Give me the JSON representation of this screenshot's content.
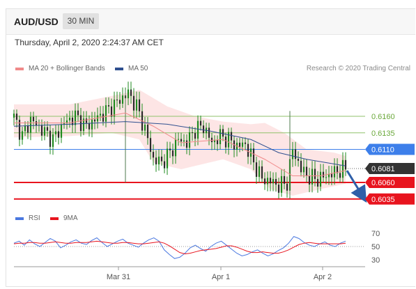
{
  "header": {
    "pair": "AUD/USD",
    "timeframe": "30 MIN",
    "datetime": "Thursday, April 2, 2020 2:24:37 AM CET"
  },
  "legend": {
    "ma20_label": "MA 20 + Bollinger Bands",
    "ma50_label": "MA 50",
    "copyright": "Research © 2020 Trading Central",
    "rsi_label": "RSI",
    "ma9_label": "9MA"
  },
  "colors": {
    "ma20": "#f08a8a",
    "ma50": "#2f4f8f",
    "bands_fill": "#fde0e0",
    "pivot_green": "#8fc26a",
    "pivot_blue": "#3d7fea",
    "support_red": "#e8141e",
    "current_price": "#333333",
    "rsi": "#4a78e0",
    "rsi_ma": "#e8141e",
    "candle": "#1e8a1e"
  },
  "chart_data": [
    {
      "type": "candlestick",
      "title": "AUD/USD 30 MIN",
      "ylim": [
        0.602,
        0.622
      ],
      "x_ticks": [
        "Mar 31",
        "Apr 1",
        "Apr 2"
      ],
      "levels": [
        {
          "value": 0.616,
          "label": "0.6160",
          "kind": "resistance",
          "color": "#8fc26a"
        },
        {
          "value": 0.6135,
          "label": "0.6135",
          "kind": "resistance",
          "color": "#8fc26a"
        },
        {
          "value": 0.611,
          "label": "0.6110",
          "kind": "pivot",
          "color": "#3d7fea"
        },
        {
          "value": 0.6081,
          "label": "0.6081",
          "kind": "current",
          "color": "#333333"
        },
        {
          "value": 0.606,
          "label": "0.6060",
          "kind": "support",
          "color": "#e8141e"
        },
        {
          "value": 0.6035,
          "label": "0.6035",
          "kind": "support",
          "color": "#e8141e"
        }
      ],
      "close_path": [
        [
          0,
          0.6158
        ],
        [
          3,
          0.613
        ],
        [
          6,
          0.6155
        ],
        [
          10,
          0.614
        ],
        [
          14,
          0.6125
        ],
        [
          18,
          0.615
        ],
        [
          22,
          0.616
        ],
        [
          26,
          0.6145
        ],
        [
          30,
          0.6158
        ],
        [
          34,
          0.617
        ],
        [
          38,
          0.6185
        ],
        [
          41,
          0.6195
        ],
        [
          44,
          0.6175
        ],
        [
          47,
          0.614
        ],
        [
          50,
          0.6095
        ],
        [
          53,
          0.609
        ],
        [
          56,
          0.6105
        ],
        [
          59,
          0.6125
        ],
        [
          62,
          0.612
        ],
        [
          65,
          0.614
        ],
        [
          68,
          0.6145
        ],
        [
          71,
          0.612
        ],
        [
          74,
          0.613
        ],
        [
          77,
          0.6125
        ],
        [
          80,
          0.6115
        ],
        [
          83,
          0.6118
        ],
        [
          86,
          0.609
        ],
        [
          89,
          0.6065
        ],
        [
          92,
          0.6062
        ],
        [
          95,
          0.6055
        ],
        [
          98,
          0.606
        ],
        [
          100,
          0.611
        ],
        [
          103,
          0.608
        ],
        [
          106,
          0.6068
        ],
        [
          109,
          0.6065
        ],
        [
          112,
          0.607
        ],
        [
          115,
          0.6075
        ],
        [
          118,
          0.608
        ],
        [
          119,
          0.6081
        ]
      ],
      "ma20": [
        [
          0,
          0.615
        ],
        [
          20,
          0.615
        ],
        [
          40,
          0.6165
        ],
        [
          50,
          0.6145
        ],
        [
          60,
          0.612
        ],
        [
          75,
          0.6125
        ],
        [
          90,
          0.6095
        ],
        [
          100,
          0.607
        ],
        [
          110,
          0.607
        ],
        [
          119,
          0.6078
        ]
      ],
      "ma50": [
        [
          0,
          0.6145
        ],
        [
          20,
          0.6148
        ],
        [
          40,
          0.6152
        ],
        [
          55,
          0.6148
        ],
        [
          70,
          0.6138
        ],
        [
          85,
          0.6125
        ],
        [
          95,
          0.6105
        ],
        [
          105,
          0.6095
        ],
        [
          119,
          0.6085
        ]
      ],
      "bands_upper": [
        [
          0,
          0.6178
        ],
        [
          20,
          0.6178
        ],
        [
          40,
          0.6195
        ],
        [
          45,
          0.62
        ],
        [
          55,
          0.6175
        ],
        [
          65,
          0.616
        ],
        [
          75,
          0.6152
        ],
        [
          85,
          0.6148
        ],
        [
          90,
          0.615
        ],
        [
          97,
          0.6135
        ],
        [
          105,
          0.611
        ],
        [
          115,
          0.6105
        ],
        [
          119,
          0.61
        ]
      ],
      "bands_lower": [
        [
          0,
          0.6128
        ],
        [
          20,
          0.613
        ],
        [
          35,
          0.6135
        ],
        [
          45,
          0.6125
        ],
        [
          50,
          0.609
        ],
        [
          60,
          0.608
        ],
        [
          75,
          0.6095
        ],
        [
          85,
          0.608
        ],
        [
          92,
          0.605
        ],
        [
          100,
          0.604
        ],
        [
          110,
          0.605
        ],
        [
          119,
          0.6058
        ]
      ],
      "spikes": [
        {
          "x": 40,
          "high": 0.62,
          "low": 0.606
        },
        {
          "x": 99,
          "high": 0.6168,
          "low": 0.6038
        }
      ],
      "projection": {
        "from": [
          119,
          0.6081
        ],
        "to": [
          126,
          0.6037
        ]
      }
    },
    {
      "type": "line",
      "title": "RSI",
      "ylim": [
        25,
        75
      ],
      "y_ticks": [
        30,
        50,
        70
      ],
      "series": [
        {
          "name": "RSI",
          "values": [
            55,
            58,
            52,
            60,
            54,
            50,
            56,
            62,
            58,
            48,
            52,
            57,
            60,
            55,
            53,
            59,
            63,
            56,
            50,
            54,
            58,
            61,
            55,
            52,
            49,
            55,
            60,
            63,
            58,
            45,
            38,
            32,
            34,
            40,
            48,
            52,
            47,
            43,
            50,
            55,
            58,
            52,
            46,
            40,
            36,
            38,
            42,
            45,
            40,
            36,
            39,
            44,
            48,
            55,
            65,
            62,
            56,
            52,
            50,
            54,
            57,
            52,
            50,
            55,
            58
          ]
        },
        {
          "name": "9MA",
          "values": [
            54,
            55,
            55,
            56,
            56,
            55,
            55,
            56,
            57,
            56,
            55,
            55,
            56,
            56,
            56,
            57,
            58,
            57,
            56,
            55,
            55,
            56,
            56,
            55,
            54,
            54,
            55,
            56,
            57,
            55,
            51,
            46,
            41,
            39,
            40,
            42,
            44,
            45,
            46,
            47,
            49,
            51,
            51,
            49,
            46,
            43,
            41,
            41,
            42,
            41,
            40,
            40,
            42,
            45,
            49,
            53,
            55,
            56,
            55,
            54,
            54,
            54,
            54,
            54,
            55
          ]
        }
      ]
    }
  ]
}
